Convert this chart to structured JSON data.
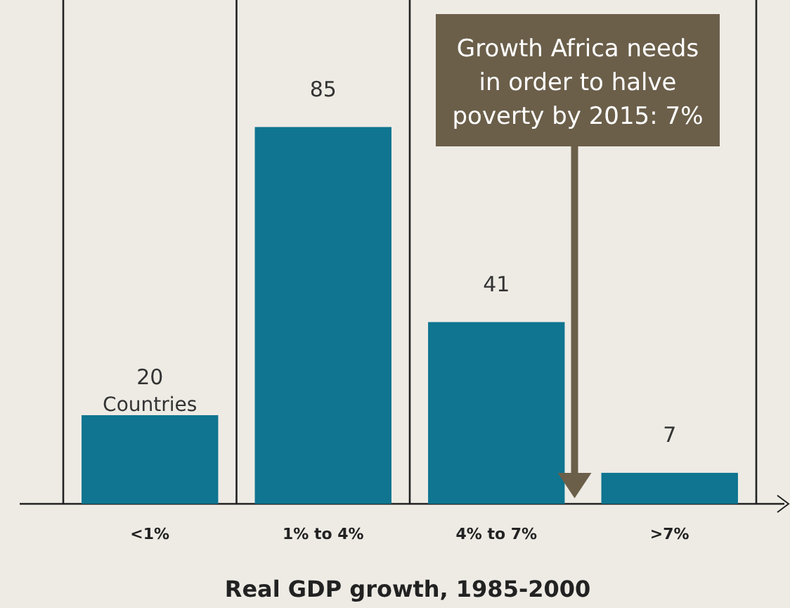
{
  "chart_data": {
    "type": "bar",
    "xlabel": "Real GDP growth, 1985-2000",
    "categories": [
      "<1%",
      "1% to 4%",
      "4% to 7%",
      ">7%"
    ],
    "values": [
      20,
      85,
      41,
      7
    ],
    "color": "#0f7590",
    "data_labels": true,
    "annotations": [
      "Countries",
      "Growth Africa needs in order to halve poverty by 2015: 7%"
    ]
  }
}
